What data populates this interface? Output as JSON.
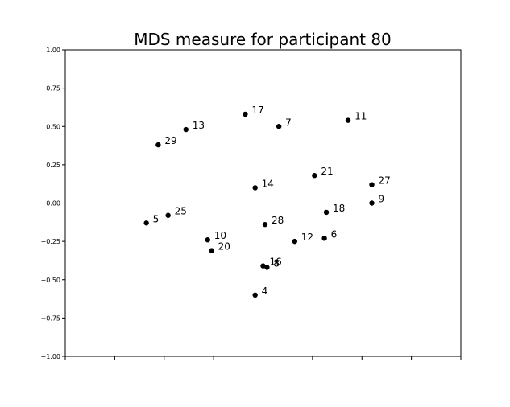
{
  "chart_data": {
    "type": "scatter",
    "title": "MDS measure for participant 80",
    "xlabel": "",
    "ylabel": "",
    "xlim": [
      -1.0,
      1.0
    ],
    "ylim": [
      -1.0,
      1.0
    ],
    "grid": false,
    "xticks": [
      -1.0,
      -0.75,
      -0.5,
      -0.25,
      0.0,
      0.25,
      0.5,
      0.75,
      1.0
    ],
    "yticks": [
      -1.0,
      -0.75,
      -0.5,
      -0.25,
      0.0,
      0.25,
      0.5,
      0.75,
      1.0
    ],
    "ytick_labels": [
      "−1.00",
      "−0.75",
      "−0.50",
      "−0.25",
      "0.00",
      "0.25",
      "0.50",
      "0.75",
      "1.00"
    ],
    "points": [
      {
        "label": "17",
        "x": -0.09,
        "y": 0.58
      },
      {
        "label": "7",
        "x": 0.08,
        "y": 0.5
      },
      {
        "label": "11",
        "x": 0.43,
        "y": 0.54
      },
      {
        "label": "13",
        "x": -0.39,
        "y": 0.48
      },
      {
        "label": "29",
        "x": -0.53,
        "y": 0.38
      },
      {
        "label": "21",
        "x": 0.26,
        "y": 0.18
      },
      {
        "label": "27",
        "x": 0.55,
        "y": 0.12
      },
      {
        "label": "14",
        "x": -0.04,
        "y": 0.1
      },
      {
        "label": "9",
        "x": 0.55,
        "y": 0.0
      },
      {
        "label": "18",
        "x": 0.32,
        "y": -0.06
      },
      {
        "label": "5",
        "x": -0.59,
        "y": -0.13
      },
      {
        "label": "25",
        "x": -0.48,
        "y": -0.08
      },
      {
        "label": "28",
        "x": 0.01,
        "y": -0.14
      },
      {
        "label": "6",
        "x": 0.31,
        "y": -0.23
      },
      {
        "label": "12",
        "x": 0.16,
        "y": -0.25
      },
      {
        "label": "10",
        "x": -0.28,
        "y": -0.24
      },
      {
        "label": "20",
        "x": -0.26,
        "y": -0.31
      },
      {
        "label": "16",
        "x": 0.0,
        "y": -0.41
      },
      {
        "label": "8",
        "x": 0.02,
        "y": -0.42
      },
      {
        "label": "4",
        "x": -0.04,
        "y": -0.6
      }
    ]
  }
}
